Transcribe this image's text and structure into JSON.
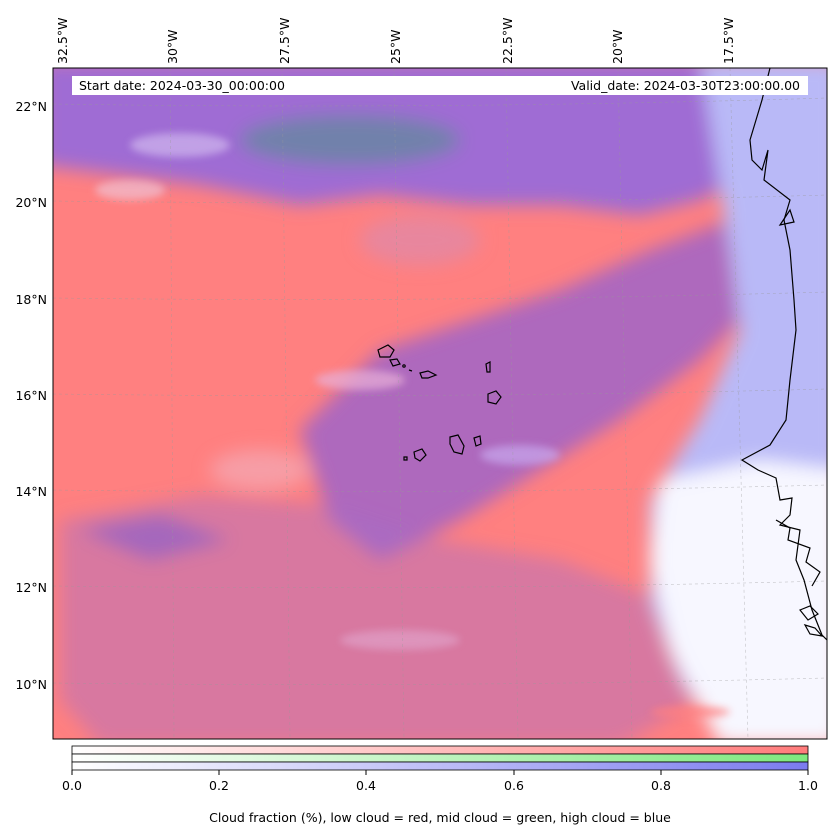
{
  "map": {
    "lon_labels": [
      "32.5°W",
      "30°W",
      "27.5°W",
      "25°W",
      "22.5°W",
      "20°W",
      "17.5°W"
    ],
    "lat_labels": [
      "22°N",
      "20°N",
      "18°N",
      "16°N",
      "14°N",
      "12°N",
      "10°N"
    ],
    "start_date": "Start date: 2024-03-30_00:00:00",
    "valid_date": "Valid_date: 2024-03-30T23:00:00.00"
  },
  "colorbar": {
    "ticks": [
      "0.0",
      "0.2",
      "0.4",
      "0.6",
      "0.8",
      "1.0"
    ],
    "caption": "Cloud fraction (%), low cloud = red, mid cloud = green, high cloud = blue",
    "colors": {
      "low": "#ff7b7b",
      "mid": "#7ee87e",
      "high": "#7b7bef"
    }
  }
}
